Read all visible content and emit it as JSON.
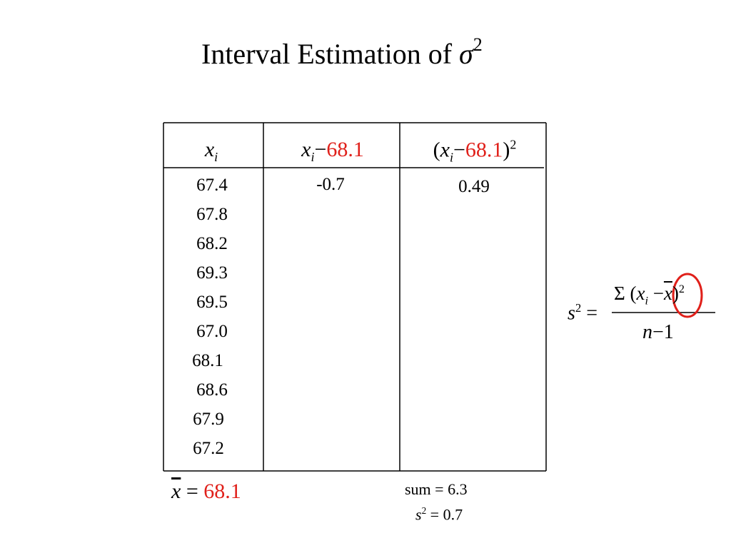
{
  "title": {
    "text": "Interval Estimation of",
    "symbol": "σ",
    "exponent": "2"
  },
  "table": {
    "headers": [
      {
        "var": "x",
        "sub": "i"
      },
      {
        "var": "x",
        "sub": "i",
        "op": "−",
        "value": "68.1"
      },
      {
        "open": "(",
        "var": "x",
        "sub": "i",
        "op": "−",
        "value": "68.1",
        "close": ")",
        "exp": "2"
      }
    ],
    "column_1": [
      "67.4",
      "67.8",
      "68.2",
      "69.3",
      "69.5",
      "67.0",
      "68.1",
      "68.6",
      "67.9",
      "67.2"
    ],
    "column_2": [
      "-0.7"
    ],
    "column_3": [
      "0.49"
    ]
  },
  "mean": {
    "var": "x",
    "op": "=",
    "value": "68.1"
  },
  "sum": "sum = 6.3",
  "variance": {
    "var": "s",
    "exp": "2",
    "rest": "=  0.7"
  },
  "formula": {
    "lhs": "s",
    "lhs_exp": "2",
    "eq": "=",
    "sigma": "Σ",
    "open": "(",
    "var": "x",
    "sub": "i",
    "op": "−",
    "mean": "x",
    "close": ")",
    "exp": "2",
    "n": "n",
    "minus": "−",
    "one": "1"
  }
}
